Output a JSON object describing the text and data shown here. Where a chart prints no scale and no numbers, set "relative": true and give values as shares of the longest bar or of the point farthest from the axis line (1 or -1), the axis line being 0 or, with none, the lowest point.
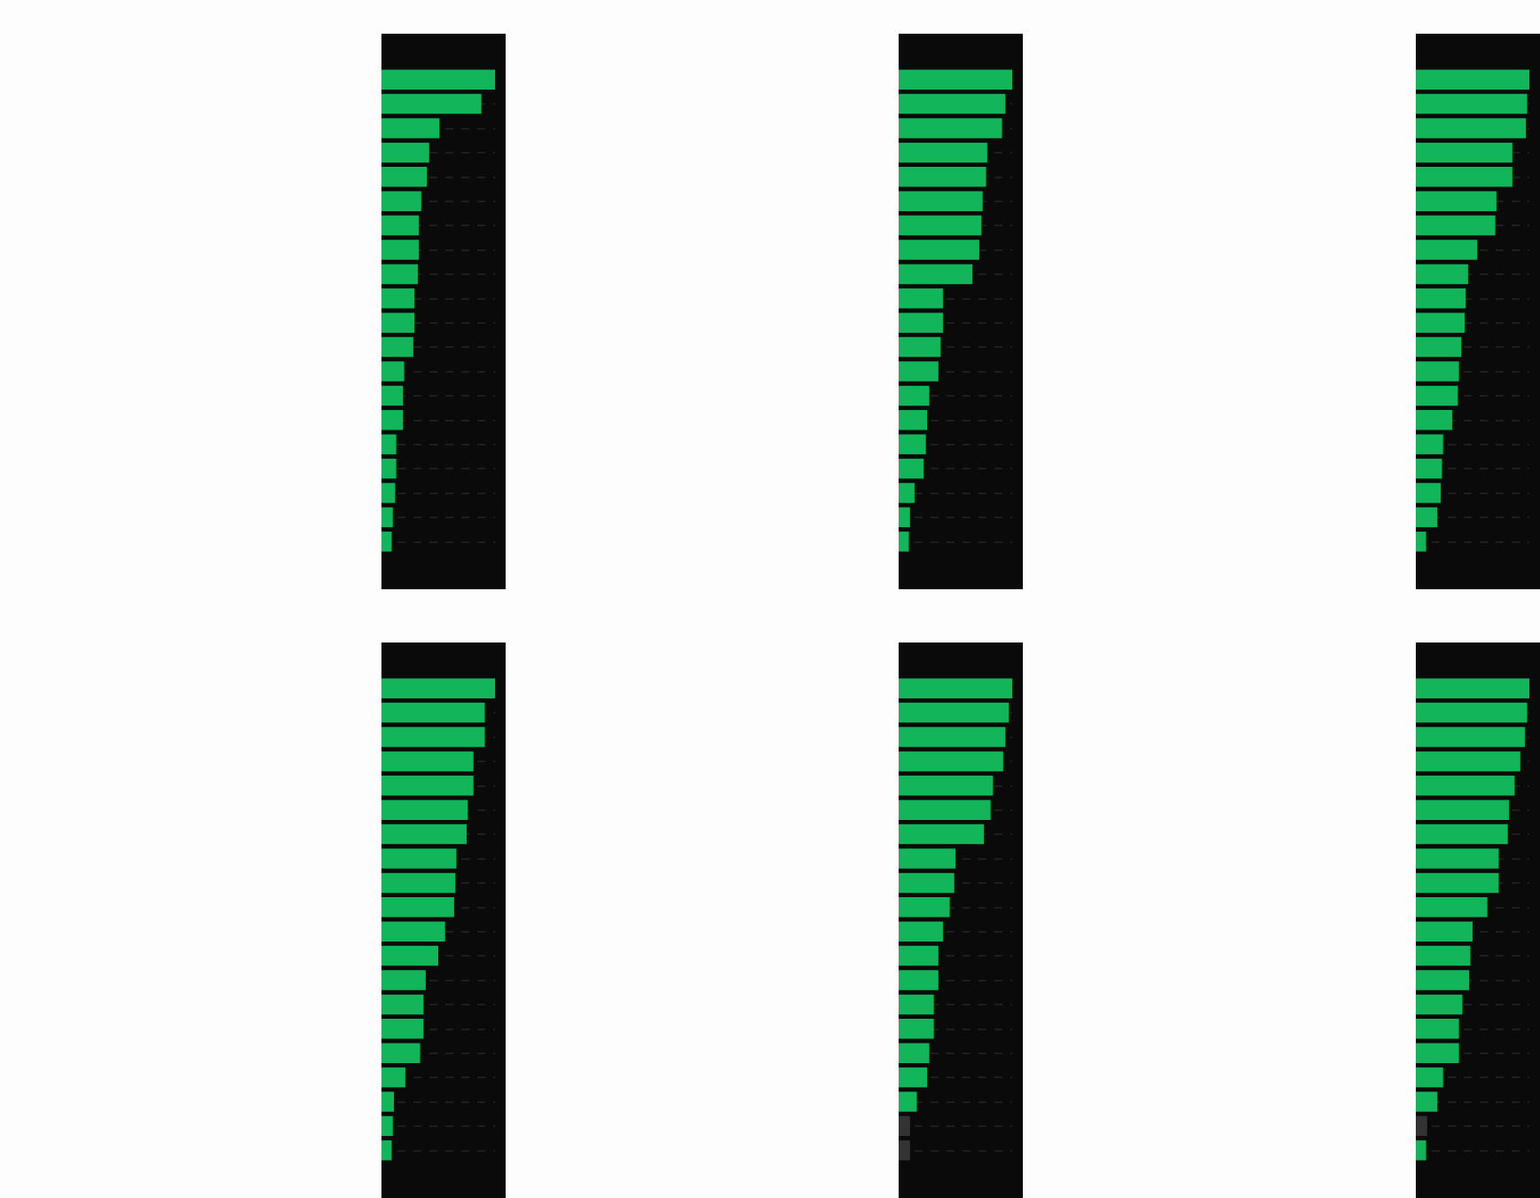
{
  "chart_data": [
    {
      "type": "bar",
      "orientation": "horizontal",
      "relative": true,
      "grid": "y",
      "categories": [
        null,
        null,
        null,
        null,
        null,
        null,
        null,
        null,
        null,
        null,
        null,
        null,
        null,
        null,
        null,
        null,
        null,
        null,
        null,
        null
      ],
      "values": [
        1,
        0.88,
        0.51,
        0.42,
        0.4,
        0.35,
        0.33,
        0.33,
        0.32,
        0.29,
        0.29,
        0.28,
        0.2,
        0.19,
        0.19,
        0.13,
        0.13,
        0.12,
        0.1,
        0.09
      ],
      "color": "#12b55a"
    },
    {
      "type": "bar",
      "orientation": "horizontal",
      "relative": true,
      "grid": "y",
      "categories": [
        null,
        null,
        null,
        null,
        null,
        null,
        null,
        null,
        null,
        null,
        null,
        null,
        null,
        null,
        null,
        null,
        null,
        null,
        null,
        null
      ],
      "values": [
        1,
        0.94,
        0.91,
        0.78,
        0.77,
        0.74,
        0.73,
        0.71,
        0.65,
        0.39,
        0.39,
        0.37,
        0.35,
        0.27,
        0.25,
        0.24,
        0.22,
        0.14,
        0.1,
        0.09
      ],
      "color": "#12b55a"
    },
    {
      "type": "bar",
      "orientation": "horizontal",
      "relative": true,
      "grid": "y",
      "categories": [
        null,
        null,
        null,
        null,
        null,
        null,
        null,
        null,
        null,
        null,
        null,
        null,
        null,
        null,
        null,
        null,
        null,
        null,
        null,
        null
      ],
      "values": [
        1,
        0.98,
        0.97,
        0.85,
        0.85,
        0.71,
        0.7,
        0.54,
        0.46,
        0.44,
        0.43,
        0.4,
        0.38,
        0.37,
        0.32,
        0.24,
        0.23,
        0.22,
        0.19,
        0.09
      ],
      "color": "#12b55a"
    },
    {
      "type": "bar",
      "orientation": "horizontal",
      "relative": true,
      "grid": "y",
      "categories": [
        null,
        null,
        null,
        null,
        null,
        null,
        null,
        null,
        null,
        null,
        null,
        null,
        null,
        null,
        null,
        null,
        null,
        null,
        null,
        null
      ],
      "values": [
        1,
        0.91,
        0.91,
        0.81,
        0.81,
        0.76,
        0.75,
        0.66,
        0.65,
        0.64,
        0.56,
        0.5,
        0.39,
        0.37,
        0.37,
        0.34,
        0.21,
        0.11,
        0.1,
        0.09
      ],
      "color": "#12b55a"
    },
    {
      "type": "bar",
      "orientation": "horizontal",
      "relative": true,
      "grid": "y",
      "categories": [
        null,
        null,
        null,
        null,
        null,
        null,
        null,
        null,
        null,
        null,
        null,
        null,
        null,
        null,
        null,
        null,
        null,
        null,
        null,
        null
      ],
      "values": [
        1,
        0.97,
        0.94,
        0.92,
        0.83,
        0.81,
        0.75,
        0.5,
        0.49,
        0.45,
        0.39,
        0.35,
        0.35,
        0.31,
        0.31,
        0.27,
        0.25,
        0.16,
        0.1,
        0.1
      ],
      "colors": [
        "#12b55a",
        "#12b55a",
        "#12b55a",
        "#12b55a",
        "#12b55a",
        "#12b55a",
        "#12b55a",
        "#12b55a",
        "#12b55a",
        "#12b55a",
        "#12b55a",
        "#12b55a",
        "#12b55a",
        "#12b55a",
        "#12b55a",
        "#12b55a",
        "#12b55a",
        "#12b55a",
        "#333333",
        "#333333"
      ]
    },
    {
      "type": "bar",
      "orientation": "horizontal",
      "relative": true,
      "grid": "y",
      "categories": [
        null,
        null,
        null,
        null,
        null,
        null,
        null,
        null,
        null,
        null,
        null,
        null,
        null,
        null,
        null,
        null,
        null,
        null,
        null,
        null
      ],
      "values": [
        1,
        0.98,
        0.96,
        0.92,
        0.87,
        0.82,
        0.81,
        0.73,
        0.73,
        0.63,
        0.5,
        0.48,
        0.47,
        0.41,
        0.38,
        0.38,
        0.24,
        0.19,
        0.1,
        0.09
      ],
      "colors": [
        "#12b55a",
        "#12b55a",
        "#12b55a",
        "#12b55a",
        "#12b55a",
        "#12b55a",
        "#12b55a",
        "#12b55a",
        "#12b55a",
        "#12b55a",
        "#12b55a",
        "#12b55a",
        "#12b55a",
        "#12b55a",
        "#12b55a",
        "#12b55a",
        "#12b55a",
        "#12b55a",
        "#333333",
        "#12b55a"
      ]
    }
  ]
}
